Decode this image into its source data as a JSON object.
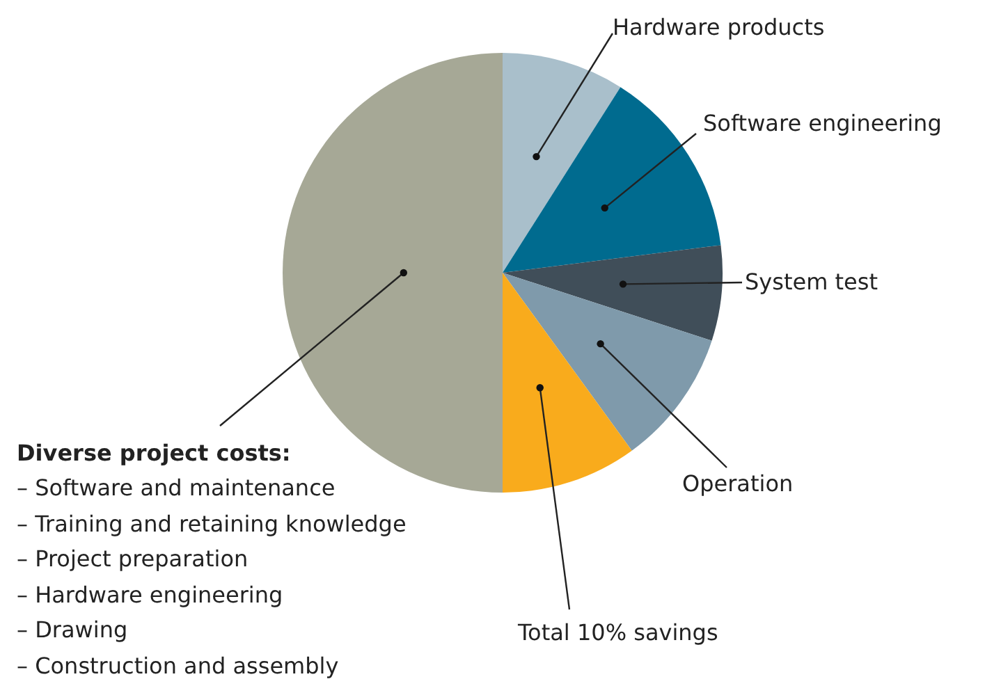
{
  "chart_data": {
    "type": "pie",
    "categories": [
      "Hardware products",
      "Software engineering",
      "System test",
      "Operation",
      "Total 10% savings",
      null
    ],
    "values": [
      9,
      14,
      7,
      10,
      10,
      50
    ],
    "colors": [
      "#a9bfcb",
      "#006b8f",
      "#404e59",
      "#7f9aab",
      "#f9ab1c",
      "#a6a896"
    ],
    "annotations": [
      "Diverse project costs:",
      "– Software and maintenance",
      "– Training and retaining knowledge",
      "– Project preparation",
      "– Hardware engineering",
      "– Drawing",
      "– Construction and assembly"
    ],
    "legend": false
  }
}
